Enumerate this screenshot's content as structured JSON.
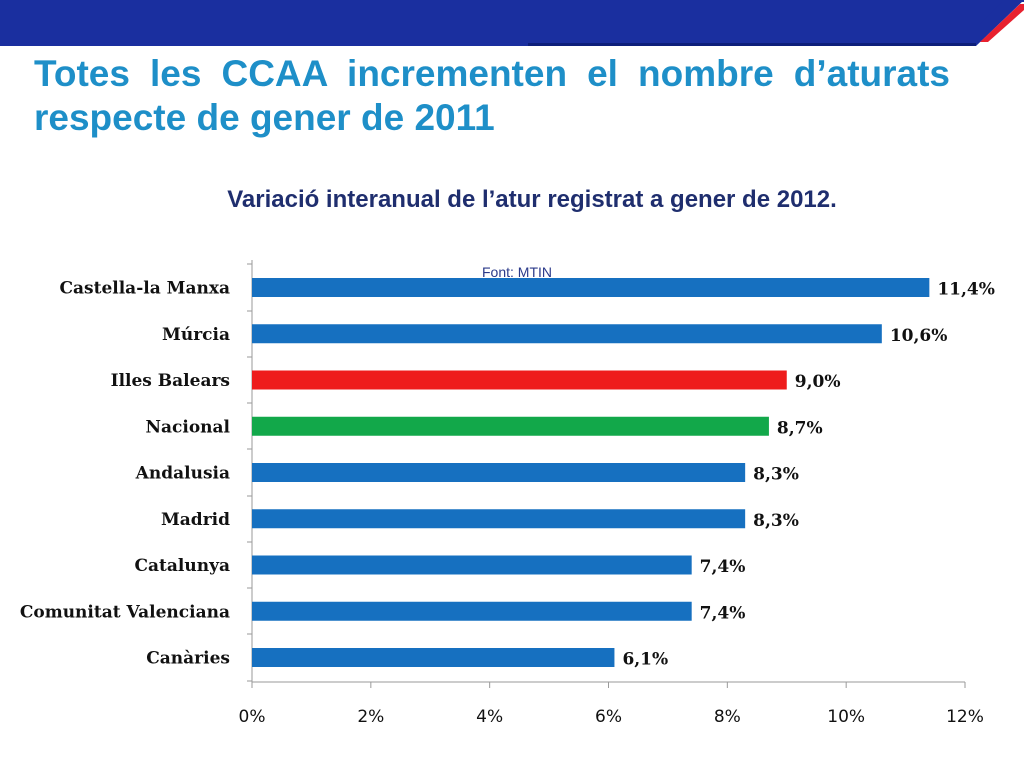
{
  "slide": {
    "title": "Totes les CCAA incrementen el nombre d’aturats respecte de gener de 2011"
  },
  "colors": {
    "header_blue": "#1a2f9f",
    "accent_red": "#e8212f",
    "title_blue": "#1e8fc8"
  },
  "chart_data": {
    "type": "bar",
    "orientation": "horizontal",
    "title": "Variació interanual de l’atur registrat a gener de 2012.",
    "source": "Font: MTIN",
    "categories": [
      "Castella-la Manxa",
      "Múrcia",
      "Illes Balears",
      "Nacional",
      "Andalusia",
      "Madrid",
      "Catalunya",
      "Comunitat Valenciana",
      "Canàries"
    ],
    "values": [
      11.4,
      10.6,
      9.0,
      8.7,
      8.3,
      8.3,
      7.4,
      7.4,
      6.1
    ],
    "value_labels": [
      "11,4%",
      "10,6%",
      "9,0%",
      "8,7%",
      "8,3%",
      "8,3%",
      "7,4%",
      "7,4%",
      "6,1%"
    ],
    "bar_colors": [
      "#1670c0",
      "#1670c0",
      "#ee1c1c",
      "#12a84a",
      "#1670c0",
      "#1670c0",
      "#1670c0",
      "#1670c0",
      "#1670c0"
    ],
    "xlim": [
      0,
      12
    ],
    "xticks": [
      0,
      2,
      4,
      6,
      8,
      10,
      12
    ],
    "xtick_labels": [
      "0%",
      "2%",
      "4%",
      "6%",
      "8%",
      "10%",
      "12%"
    ],
    "grid": false,
    "legend": "none"
  }
}
